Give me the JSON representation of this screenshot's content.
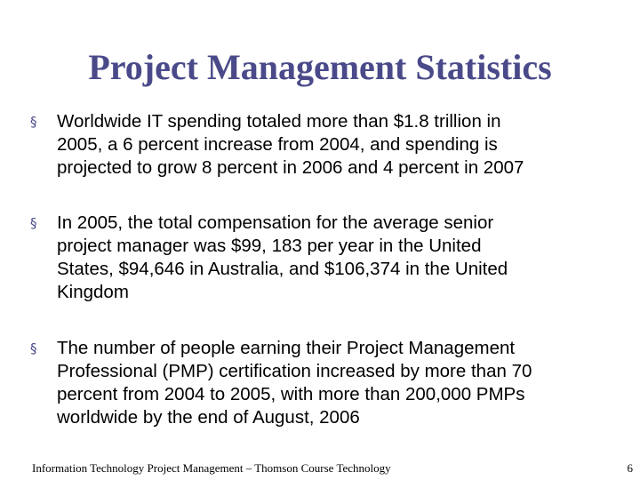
{
  "slide": {
    "title": "Project Management Statistics",
    "title_color": "#4a4a8a",
    "bullet_marker": "§",
    "bullets": [
      {
        "lines": [
          "Worldwide IT spending totaled more than $1.8 trillion in",
          "2005, a 6 percent increase from 2004, and spending is",
          "projected to grow 8 percent in 2006 and 4 percent in 2007"
        ]
      },
      {
        "lines": [
          "In 2005, the total compensation for the average senior",
          "project manager was $99, 183 per year in the United",
          "States, $94,646 in Australia, and $106,374 in the United",
          "Kingdom"
        ]
      },
      {
        "lines": [
          "The number of people earning their Project Management",
          "Professional (PMP) certification increased by more than 70",
          "percent from 2004 to 2005, with more than 200,000 PMPs",
          "worldwide by the end of August, 2006"
        ]
      }
    ]
  },
  "footer": {
    "text": "Information Technology Project Management – Thomson Course Technology",
    "page_number": "6"
  }
}
